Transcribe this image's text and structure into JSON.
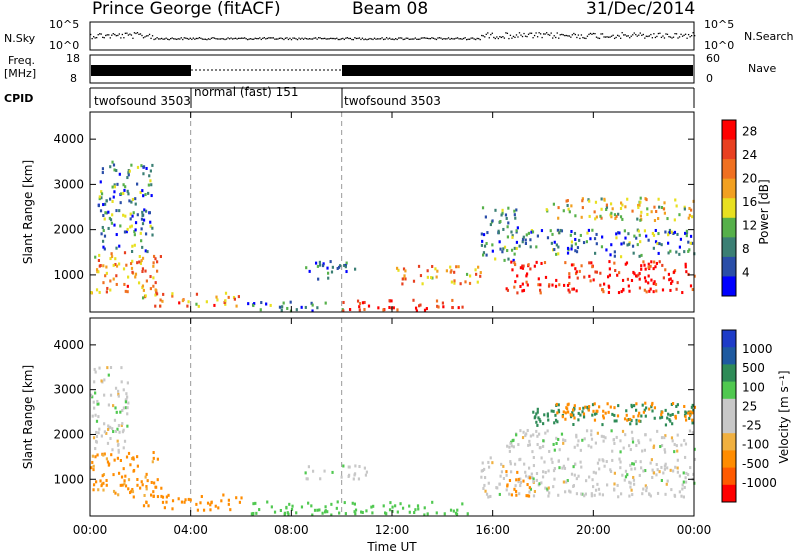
{
  "header": {
    "station": "Prince George (fitACF)",
    "beam": "Beam 08",
    "date": "31/Dec/2014"
  },
  "strips": {
    "nsky": {
      "label": "N.Sky",
      "ticks": [
        "10^5",
        "10^0"
      ],
      "right_label": "N.Search",
      "right_ticks": [
        "10^5",
        "10^0"
      ]
    },
    "freq": {
      "label_line1": "Freq.",
      "label_line2": "[MHz]",
      "ticks": [
        "18",
        "8"
      ],
      "right_label": "Nave",
      "right_ticks": [
        "60",
        "0"
      ]
    },
    "cpid": {
      "label": "CPID",
      "segments": [
        "twofsound 3503",
        "normal (fast) 151",
        "twofsound 3503"
      ]
    }
  },
  "colors": {
    "power": [
      "#0000ff",
      "#2a4ea8",
      "#3b7f74",
      "#56b04a",
      "#e8e020",
      "#f2a020",
      "#f07020",
      "#e84020",
      "#ff0000"
    ],
    "velocity": [
      "#ff0000",
      "#ff5a00",
      "#ff8c00",
      "#f0b040",
      "#c8c8c8",
      "#c8c8c8",
      "#50c850",
      "#2e8b57",
      "#1e5aa0",
      "#1e3cc8"
    ]
  },
  "chart_data": [
    {
      "type": "heatmap",
      "name_in_figure": "Power panel",
      "ylabel": "Slant Range [km]",
      "xlabel": "Time UT",
      "x_ticks": [
        "00:00",
        "04:00",
        "08:00",
        "12:00",
        "16:00",
        "20:00",
        "00:00"
      ],
      "y_ticks": [
        1000,
        2000,
        3000,
        4000
      ],
      "ylim": [
        180,
        4600
      ],
      "colorbar": {
        "label": "Power [dB]",
        "ticks": [
          "28",
          "24",
          "20",
          "16",
          "12",
          "8",
          "4"
        ],
        "range": [
          0,
          30
        ]
      },
      "echo_regions": [
        {
          "t_start": 0.0,
          "t_end": 2.8,
          "r_low": 600,
          "r_high": 1500,
          "level": 20
        },
        {
          "t_start": 0.3,
          "t_end": 2.5,
          "r_low": 1500,
          "r_high": 3500,
          "level": 8
        },
        {
          "t_start": 2.0,
          "t_end": 6.0,
          "r_low": 300,
          "r_high": 600,
          "level": 20
        },
        {
          "t_start": 6.0,
          "t_end": 10.0,
          "r_low": 200,
          "r_high": 400,
          "level": 8
        },
        {
          "t_start": 8.5,
          "t_end": 10.5,
          "r_low": 900,
          "r_high": 1300,
          "level": 6
        },
        {
          "t_start": 10.0,
          "t_end": 15.0,
          "r_low": 200,
          "r_high": 450,
          "level": 28
        },
        {
          "t_start": 12.0,
          "t_end": 15.5,
          "r_low": 800,
          "r_high": 1200,
          "level": 20
        },
        {
          "t_start": 15.5,
          "t_end": 17.0,
          "r_low": 1300,
          "r_high": 2500,
          "level": 8
        },
        {
          "t_start": 16.5,
          "t_end": 24.0,
          "r_low": 600,
          "r_high": 1300,
          "level": 28
        },
        {
          "t_start": 16.5,
          "t_end": 24.0,
          "r_low": 1400,
          "r_high": 2000,
          "level": 8
        },
        {
          "t_start": 18.0,
          "t_end": 24.0,
          "r_low": 2200,
          "r_high": 2700,
          "level": 16
        }
      ]
    },
    {
      "type": "heatmap",
      "name_in_figure": "Velocity panel",
      "ylabel": "Slant Range [km]",
      "xlabel": "Time UT",
      "x_ticks": [
        "00:00",
        "04:00",
        "08:00",
        "12:00",
        "16:00",
        "20:00",
        "00:00"
      ],
      "y_ticks": [
        1000,
        2000,
        3000,
        4000
      ],
      "ylim": [
        180,
        4600
      ],
      "colorbar": {
        "label": "Velocity [m s⁻¹]",
        "ticks": [
          "1000",
          "500",
          "100",
          "25",
          "-25",
          "-100",
          "-500",
          "-1000"
        ],
        "range": [
          -1200,
          1200
        ]
      },
      "echo_regions": [
        {
          "t_start": 0.0,
          "t_end": 2.8,
          "r_low": 600,
          "r_high": 1600,
          "level": -150
        },
        {
          "t_start": 0.0,
          "t_end": 1.5,
          "r_low": 1600,
          "r_high": 3500,
          "level": 0
        },
        {
          "t_start": 2.0,
          "t_end": 6.0,
          "r_low": 300,
          "r_high": 650,
          "level": -200
        },
        {
          "t_start": 6.0,
          "t_end": 15.0,
          "r_low": 200,
          "r_high": 500,
          "level": 60
        },
        {
          "t_start": 8.5,
          "t_end": 11.0,
          "r_low": 1000,
          "r_high": 1300,
          "level": 0
        },
        {
          "t_start": 15.5,
          "t_end": 24.0,
          "r_low": 600,
          "r_high": 1500,
          "level": 0
        },
        {
          "t_start": 16.5,
          "t_end": 17.5,
          "r_low": 600,
          "r_high": 1200,
          "level": -300
        },
        {
          "t_start": 16.5,
          "t_end": 24.0,
          "r_low": 1600,
          "r_high": 2100,
          "level": 0
        },
        {
          "t_start": 17.5,
          "t_end": 24.0,
          "r_low": 2200,
          "r_high": 2700,
          "level": 300
        },
        {
          "t_start": 18.5,
          "t_end": 24.0,
          "r_low": 2300,
          "r_high": 2700,
          "level": -200
        }
      ]
    }
  ]
}
